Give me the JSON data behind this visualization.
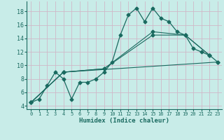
{
  "xlabel": "Humidex (Indice chaleur)",
  "ylabel": "",
  "bg_color": "#c8ece8",
  "grid_color": "#d0b8c8",
  "line_color": "#1a6a60",
  "xlim": [
    -0.5,
    23.5
  ],
  "ylim": [
    3.5,
    19.5
  ],
  "xticks": [
    0,
    1,
    2,
    3,
    4,
    5,
    6,
    7,
    8,
    9,
    10,
    11,
    12,
    13,
    14,
    15,
    16,
    17,
    18,
    19,
    20,
    21,
    22,
    23
  ],
  "yticks": [
    4,
    6,
    8,
    10,
    12,
    14,
    16,
    18
  ],
  "line1_x": [
    0,
    1,
    2,
    3,
    4,
    5,
    6,
    7,
    8,
    9,
    10,
    11,
    12,
    13,
    14,
    15,
    16,
    17,
    18,
    19,
    20,
    21,
    22,
    23
  ],
  "line1_y": [
    4.5,
    5.0,
    7.0,
    9.0,
    8.0,
    5.0,
    7.5,
    7.5,
    8.0,
    9.0,
    10.5,
    14.5,
    17.5,
    18.5,
    16.5,
    18.5,
    17.0,
    16.5,
    15.0,
    14.5,
    12.5,
    12.0,
    11.5,
    10.5
  ],
  "line2_x": [
    0,
    4,
    9,
    15,
    19,
    22
  ],
  "line2_y": [
    4.5,
    9.0,
    9.5,
    14.5,
    14.5,
    11.5
  ],
  "line3_x": [
    0,
    4,
    9,
    15,
    19,
    22
  ],
  "line3_y": [
    4.5,
    9.0,
    9.5,
    15.0,
    14.5,
    11.5
  ],
  "line4_x": [
    0,
    4,
    23
  ],
  "line4_y": [
    4.5,
    9.0,
    10.5
  ],
  "marker": "D",
  "markersize": 2.5
}
